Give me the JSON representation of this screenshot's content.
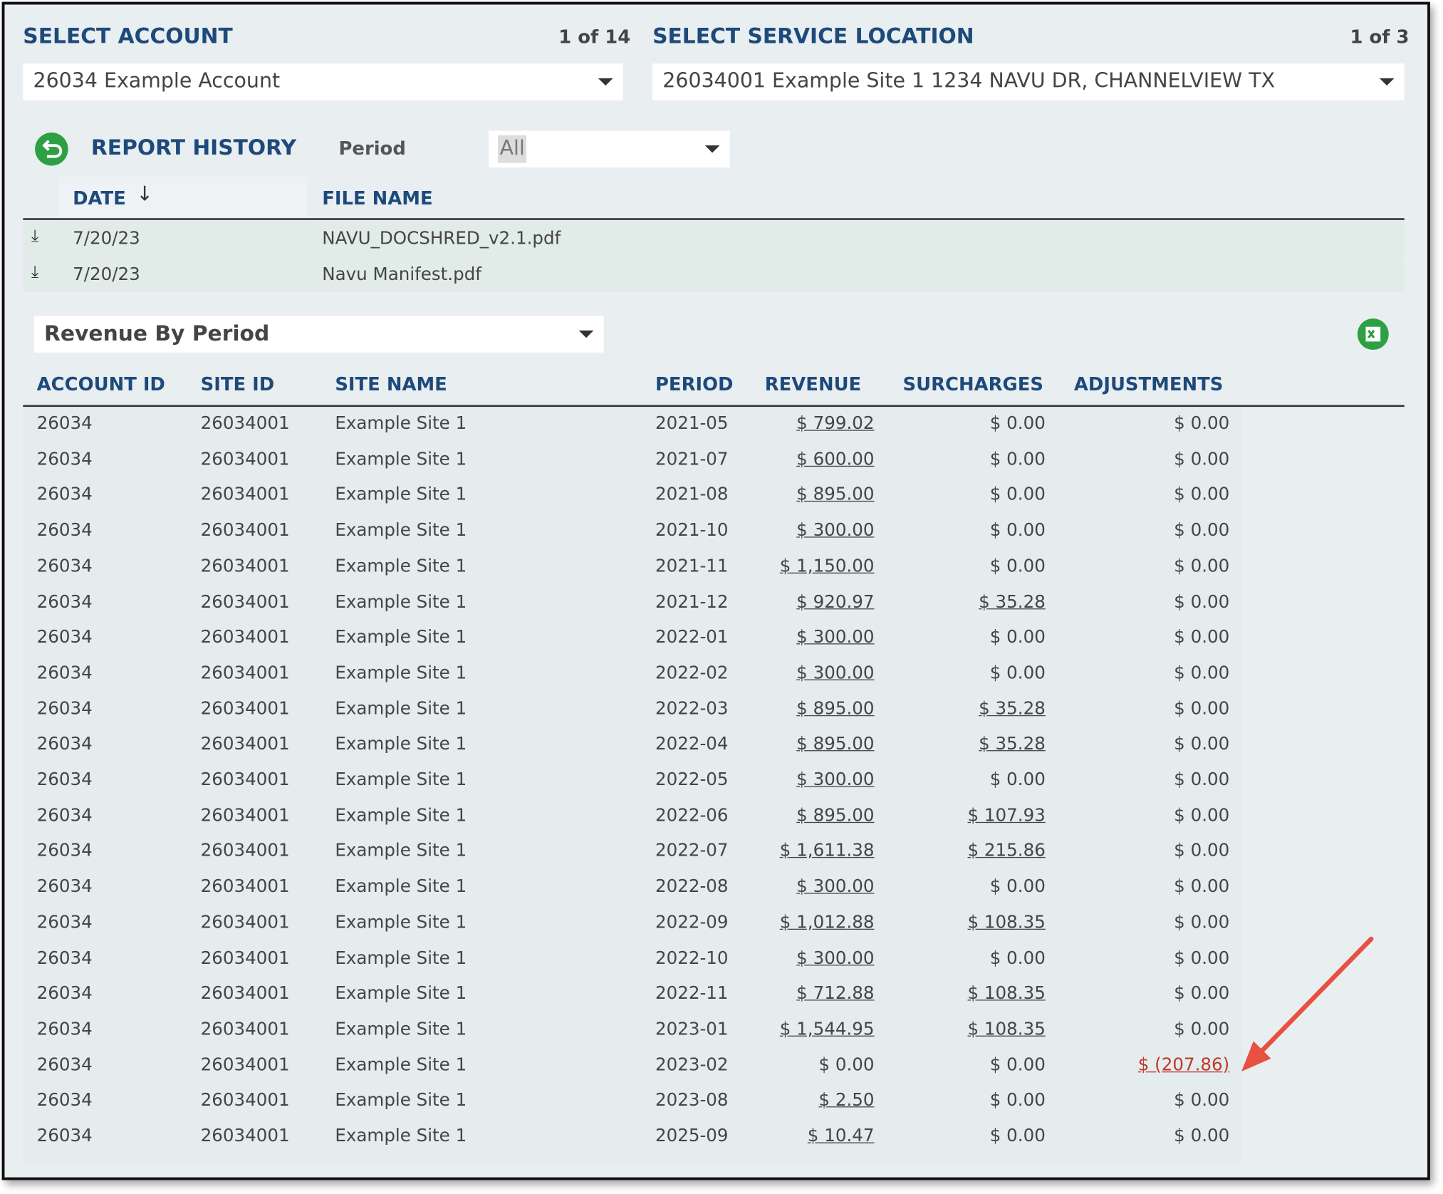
{
  "account": {
    "label": "SELECT ACCOUNT",
    "count": "1 of 14",
    "selected": "26034 Example Account"
  },
  "location": {
    "label": "SELECT SERVICE LOCATION",
    "count": "1 of 3",
    "selected": "26034001 Example Site 1 1234 NAVU DR, CHANNELVIEW TX"
  },
  "report_history": {
    "title": "REPORT HISTORY",
    "period_label": "Period",
    "period_value": "All",
    "columns": [
      "DATE",
      "FILE NAME"
    ],
    "rows": [
      [
        "7/20/23",
        "NAVU_DOCSHRED_v2.1.pdf"
      ],
      [
        "7/20/23",
        "Navu Manifest.pdf"
      ]
    ]
  },
  "report": {
    "selected": "Revenue By Period",
    "columns": [
      "ACCOUNT ID",
      "SITE ID",
      "SITE NAME",
      "PERIOD",
      "REVENUE",
      "SURCHARGES",
      "ADJUSTMENTS"
    ],
    "rows": [
      [
        "26034",
        "26034001",
        "Example Site 1",
        "2021-05",
        "$ 799.02",
        "$ 0.00",
        "$ 0.00"
      ],
      [
        "26034",
        "26034001",
        "Example Site 1",
        "2021-07",
        "$ 600.00",
        "$ 0.00",
        "$ 0.00"
      ],
      [
        "26034",
        "26034001",
        "Example Site 1",
        "2021-08",
        "$ 895.00",
        "$ 0.00",
        "$ 0.00"
      ],
      [
        "26034",
        "26034001",
        "Example Site 1",
        "2021-10",
        "$ 300.00",
        "$ 0.00",
        "$ 0.00"
      ],
      [
        "26034",
        "26034001",
        "Example Site 1",
        "2021-11",
        "$ 1,150.00",
        "$ 0.00",
        "$ 0.00"
      ],
      [
        "26034",
        "26034001",
        "Example Site 1",
        "2021-12",
        "$ 920.97",
        "$ 35.28",
        "$ 0.00"
      ],
      [
        "26034",
        "26034001",
        "Example Site 1",
        "2022-01",
        "$ 300.00",
        "$ 0.00",
        "$ 0.00"
      ],
      [
        "26034",
        "26034001",
        "Example Site 1",
        "2022-02",
        "$ 300.00",
        "$ 0.00",
        "$ 0.00"
      ],
      [
        "26034",
        "26034001",
        "Example Site 1",
        "2022-03",
        "$ 895.00",
        "$ 35.28",
        "$ 0.00"
      ],
      [
        "26034",
        "26034001",
        "Example Site 1",
        "2022-04",
        "$ 895.00",
        "$ 35.28",
        "$ 0.00"
      ],
      [
        "26034",
        "26034001",
        "Example Site 1",
        "2022-05",
        "$ 300.00",
        "$ 0.00",
        "$ 0.00"
      ],
      [
        "26034",
        "26034001",
        "Example Site 1",
        "2022-06",
        "$ 895.00",
        "$ 107.93",
        "$ 0.00"
      ],
      [
        "26034",
        "26034001",
        "Example Site 1",
        "2022-07",
        "$ 1,611.38",
        "$ 215.86",
        "$ 0.00"
      ],
      [
        "26034",
        "26034001",
        "Example Site 1",
        "2022-08",
        "$ 300.00",
        "$ 0.00",
        "$ 0.00"
      ],
      [
        "26034",
        "26034001",
        "Example Site 1",
        "2022-09",
        "$ 1,012.88",
        "$ 108.35",
        "$ 0.00"
      ],
      [
        "26034",
        "26034001",
        "Example Site 1",
        "2022-10",
        "$ 300.00",
        "$ 0.00",
        "$ 0.00"
      ],
      [
        "26034",
        "26034001",
        "Example Site 1",
        "2022-11",
        "$ 712.88",
        "$ 108.35",
        "$ 0.00"
      ],
      [
        "26034",
        "26034001",
        "Example Site 1",
        "2023-01",
        "$ 1,544.95",
        "$ 108.35",
        "$ 0.00"
      ],
      [
        "26034",
        "26034001",
        "Example Site 1",
        "2023-02",
        "$ 0.00",
        "$ 0.00",
        "$ (207.86)"
      ],
      [
        "26034",
        "26034001",
        "Example Site 1",
        "2023-08",
        "$ 2.50",
        "$ 0.00",
        "$ 0.00"
      ],
      [
        "26034",
        "26034001",
        "Example Site 1",
        "2025-09",
        "$ 10.47",
        "$ 0.00",
        "$ 0.00"
      ]
    ]
  }
}
